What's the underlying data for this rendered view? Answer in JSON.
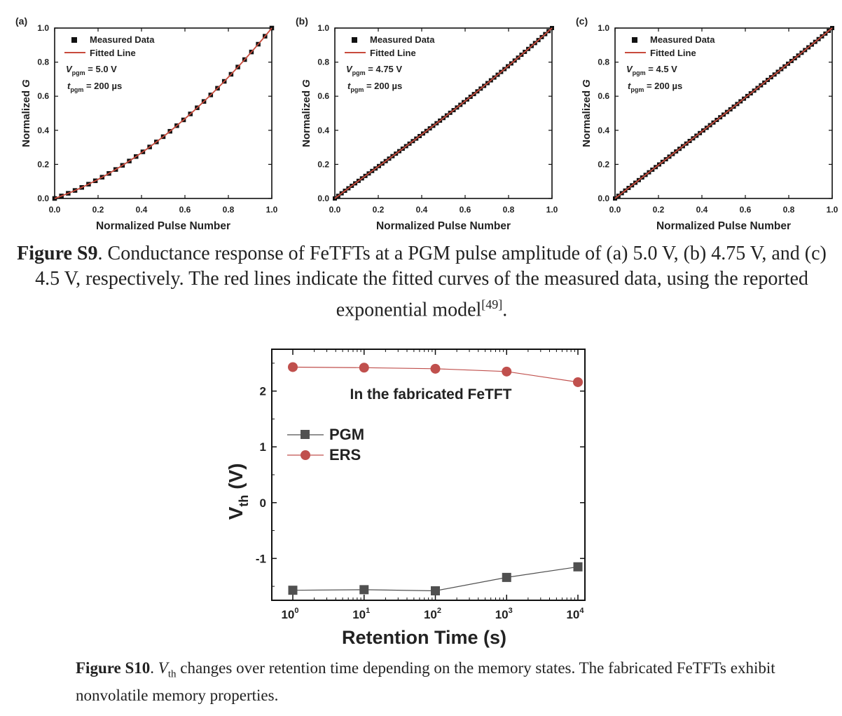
{
  "colors": {
    "measured": "#111111",
    "fit": "#c84b3c",
    "pgm": "#505050",
    "ers": "#c0504d"
  },
  "figure_s9": {
    "panels": [
      {
        "label": "(a)",
        "ylabel": "Normalized G",
        "xlabel": "Normalized Pulse Number",
        "legend_measured": "Measured Data",
        "legend_fit": "Fitted Line",
        "vpgm_value": "= 5.0 V",
        "tpgm_value": "= 200 µs",
        "xticks": [
          "0.0",
          "0.2",
          "0.4",
          "0.6",
          "0.8",
          "1.0"
        ],
        "yticks": [
          "0.0",
          "0.2",
          "0.4",
          "0.6",
          "0.8",
          "1.0"
        ]
      },
      {
        "label": "(b)",
        "ylabel": "Normalized G",
        "xlabel": "Normalized Pulse Number",
        "legend_measured": "Measured Data",
        "legend_fit": "Fitted Line",
        "vpgm_value": "= 4.75 V",
        "tpgm_value": "= 200 µs",
        "xticks": [
          "0.0",
          "0.2",
          "0.4",
          "0.6",
          "0.8",
          "1.0"
        ],
        "yticks": [
          "0.0",
          "0.2",
          "0.4",
          "0.6",
          "0.8",
          "1.0"
        ]
      },
      {
        "label": "(c)",
        "ylabel": "Normalized G",
        "xlabel": "Normalized Pulse Number",
        "legend_measured": "Measured Data",
        "legend_fit": "Fitted Line",
        "vpgm_value": "= 4.5 V",
        "tpgm_value": "= 200 µs",
        "xticks": [
          "0.0",
          "0.2",
          "0.4",
          "0.6",
          "0.8",
          "1.0"
        ],
        "yticks": [
          "0.0",
          "0.2",
          "0.4",
          "0.6",
          "0.8",
          "1.0"
        ]
      }
    ],
    "caption_label": "Figure S9",
    "caption_text": ". Conductance response of FeTFTs at a PGM pulse amplitude of (a) 5.0 V, (b) 4.75 V, and (c) 4.5 V, respectively. The red lines indicate the fitted curves of the measured data, using the reported exponential model",
    "caption_ref": "[49]",
    "caption_end": "."
  },
  "figure_s10": {
    "annotation": "In the fabricated FeTFT",
    "xlabel": "Retention Time (s)",
    "yticks": [
      "2",
      "1",
      "0",
      "-1"
    ],
    "xtick_base": "10",
    "xtick_exps": [
      "0",
      "1",
      "2",
      "3",
      "4"
    ],
    "caption_label": "Figure S10",
    "caption_text_1": ". ",
    "caption_vth_v": "V",
    "caption_vth_sub": "th",
    "caption_text_2": " changes over retention time depending on the memory states. The fabricated FeTFTs exhibit nonvolatile memory properties."
  },
  "chart_data": [
    {
      "type": "scatter",
      "panel": "(a)",
      "xlabel": "Normalized Pulse Number",
      "ylabel": "Normalized G",
      "xlim": [
        0,
        1
      ],
      "ylim": [
        0,
        1
      ],
      "points": 33,
      "nonlinearity": 0.9,
      "series": [
        {
          "name": "Measured Data",
          "style": "square-markers"
        },
        {
          "name": "Fitted Line",
          "style": "line"
        }
      ]
    },
    {
      "type": "scatter",
      "panel": "(b)",
      "xlabel": "Normalized Pulse Number",
      "ylabel": "Normalized G",
      "xlim": [
        0,
        1
      ],
      "ylim": [
        0,
        1
      ],
      "points": 65,
      "nonlinearity": 0.35,
      "series": [
        {
          "name": "Measured Data",
          "style": "square-markers"
        },
        {
          "name": "Fitted Line",
          "style": "line"
        }
      ]
    },
    {
      "type": "scatter",
      "panel": "(c)",
      "xlabel": "Normalized Pulse Number",
      "ylabel": "Normalized G",
      "xlim": [
        0,
        1
      ],
      "ylim": [
        0,
        1
      ],
      "points": 65,
      "nonlinearity": 0.1,
      "series": [
        {
          "name": "Measured Data",
          "style": "square-markers"
        },
        {
          "name": "Fitted Line",
          "style": "line"
        }
      ]
    },
    {
      "type": "line",
      "xlabel": "Retention Time (s)",
      "ylabel": "Vth (V)",
      "xscale": "log",
      "x": [
        1,
        10,
        100,
        1000,
        10000
      ],
      "ylim": [
        -1.75,
        2.75
      ],
      "series": [
        {
          "name": "PGM",
          "values": [
            -1.57,
            -1.56,
            -1.58,
            -1.34,
            -1.15
          ]
        },
        {
          "name": "ERS",
          "values": [
            2.43,
            2.42,
            2.4,
            2.35,
            2.16
          ]
        }
      ]
    }
  ]
}
